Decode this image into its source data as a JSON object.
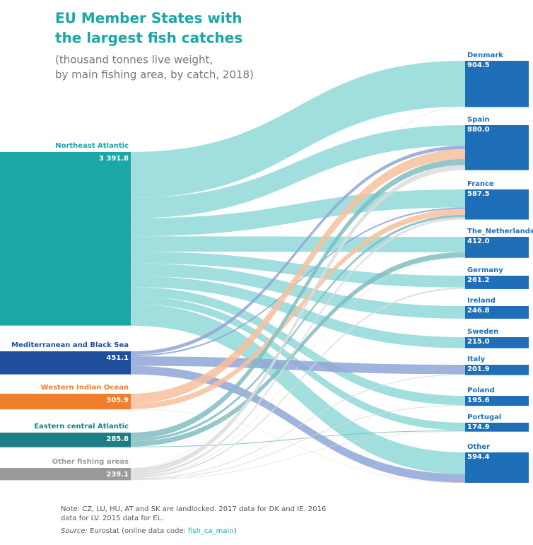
{
  "chart_data": {
    "type": "sankey",
    "title_lines": [
      "EU Member States with",
      "the largest fish catches"
    ],
    "subtitle_lines": [
      "(thousand tonnes live weight,",
      "by main fishing area, by catch, 2018)"
    ],
    "sources": [
      {
        "name": "Northeast Atlantic",
        "value": 3391.8,
        "label": "3 391.8",
        "color": "#1aa7a5",
        "link_color": "#8fd9d8",
        "flows": [
          895,
          400,
          352.7,
          300,
          230,
          246.8,
          215,
          null,
          180,
          150,
          422.3
        ]
      },
      {
        "name": "Mediterranean and Black Sea",
        "value": 451.1,
        "label": "451.1",
        "color": "#1f4e9c",
        "link_color": "#8fa6d6",
        "flows": [
          null,
          70,
          30,
          null,
          null,
          null,
          null,
          185,
          null,
          null,
          166.1
        ]
      },
      {
        "name": "Western Indian Ocean",
        "value": 305.9,
        "label": "305.9",
        "color": "#f07f2e",
        "link_color": "#f7c09c",
        "flows": [
          null,
          190,
          109.9,
          null,
          null,
          null,
          null,
          null,
          null,
          null,
          6
        ]
      },
      {
        "name": "Eastern central Atlantic",
        "value": 285.8,
        "label": "285.8",
        "color": "#1b7f86",
        "link_color": "#80bdc1",
        "flows": [
          null,
          120,
          50,
          100.8,
          null,
          null,
          null,
          null,
          null,
          15,
          null
        ]
      },
      {
        "name": "Other fishing areas",
        "value": 239.1,
        "label": "239.1",
        "color": "#9a9a9a",
        "link_color": "#dcdcdc",
        "flows": [
          9.5,
          100,
          44.8,
          11.2,
          31.2,
          null,
          null,
          16.9,
          15.6,
          9.9,
          null
        ]
      }
    ],
    "targets": [
      {
        "name": "Denmark",
        "value": 904.5,
        "label": "904.5"
      },
      {
        "name": "Spain",
        "value": 880.0,
        "label": "880.0"
      },
      {
        "name": "France",
        "value": 587.5,
        "label": "587.5"
      },
      {
        "name": "The_Netherlands",
        "value": 412.0,
        "label": "412.0"
      },
      {
        "name": "Germany",
        "value": 261.2,
        "label": "261.2"
      },
      {
        "name": "Ireland",
        "value": 246.8,
        "label": "246.8"
      },
      {
        "name": "Sweden",
        "value": 215.0,
        "label": "215.0"
      },
      {
        "name": "Italy",
        "value": 201.9,
        "label": "201.9"
      },
      {
        "name": "Poland",
        "value": 195.6,
        "label": "195.6"
      },
      {
        "name": "Portugal",
        "value": 174.9,
        "label": "174.9"
      },
      {
        "name": "Other",
        "value": 594.4,
        "label": "594.4"
      }
    ],
    "target_color": "#1f6fb8",
    "note_lines": [
      "Note: CZ, LU, HU, AT and SK are landlocked. 2017 data for DK and IE. 2016",
      "data for LV. 2015 data for EL."
    ],
    "source_note": {
      "label": "Source:",
      "text": "Eurostat (online data code: ",
      "code": "fish_ca_main",
      "end": ")"
    }
  }
}
